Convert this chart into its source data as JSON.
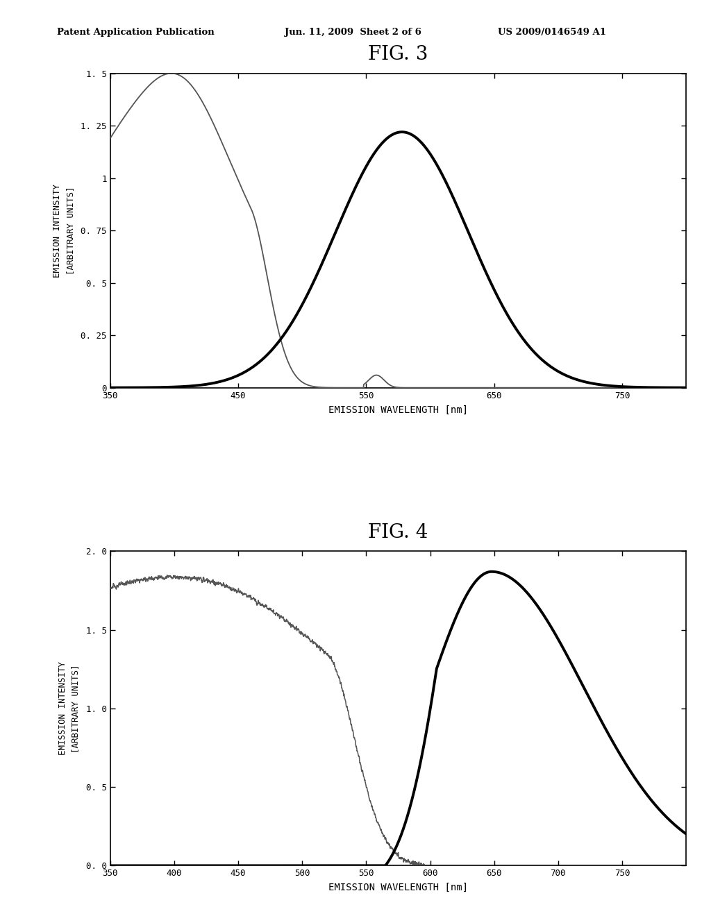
{
  "header_left": "Patent Application Publication",
  "header_mid": "Jun. 11, 2009  Sheet 2 of 6",
  "header_right": "US 2009/0146549 A1",
  "fig3_title": "FIG. 3",
  "fig4_title": "FIG. 4",
  "xlabel": "EMISSION WAVELENGTH [nm]",
  "ylabel": "EMISSION INTENSITY\n[ARBITRARY UNITS]",
  "fig3": {
    "xlim": [
      350,
      800
    ],
    "ylim": [
      0,
      1.5
    ],
    "yticks": [
      0,
      0.25,
      0.5,
      0.75,
      1.0,
      1.25,
      1.5
    ],
    "ytick_labels": [
      "0",
      "0. 25",
      "0. 5",
      "0. 75",
      "1",
      "1. 25",
      "1. 5"
    ],
    "xticks": [
      350,
      450,
      550,
      650,
      750
    ],
    "xtick_labels": [
      "350",
      "450",
      "550",
      "650",
      "750"
    ]
  },
  "fig4": {
    "xlim": [
      350,
      800
    ],
    "ylim": [
      0,
      2.0
    ],
    "yticks": [
      0.0,
      0.5,
      1.0,
      1.5,
      2.0
    ],
    "ytick_labels": [
      "0. 0",
      "0. 5",
      "1. 0",
      "1. 5",
      "2. 0"
    ],
    "xticks": [
      350,
      400,
      450,
      500,
      550,
      600,
      650,
      700,
      750
    ],
    "xtick_labels": [
      "350",
      "400",
      "450",
      "500",
      "550",
      "600",
      "650",
      "700",
      "750"
    ]
  },
  "background_color": "#ffffff",
  "thin_line_color": "#555555",
  "thick_line_color": "#000000"
}
